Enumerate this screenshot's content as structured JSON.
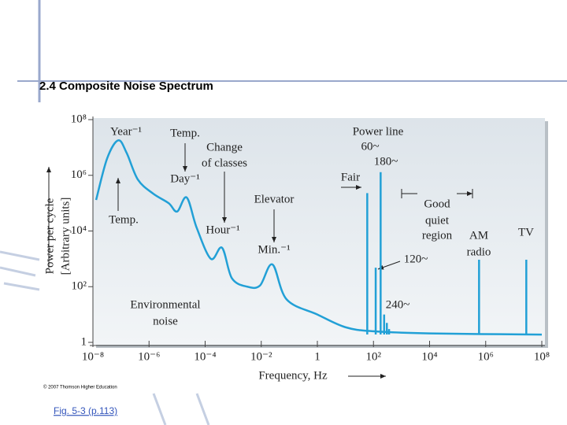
{
  "header": {
    "title": "2.4 Composite Noise Spectrum"
  },
  "chart_data": {
    "type": "line",
    "xscale": "log",
    "yscale": "log",
    "color": "#22a0d6",
    "xlabel": "Frequency, Hz",
    "ylabel": [
      "Power per cycle",
      "[Arbitrary units]"
    ],
    "x": [
      1.3e-08,
      3.2e-08,
      8e-08,
      1.6e-07,
      4e-07,
      1.4e-06,
      5e-06,
      1e-05,
      2.2e-05,
      5e-05,
      0.00016,
      0.0004,
      0.0009,
      0.0032,
      0.009,
      0.025,
      0.08,
      1,
      10,
      100,
      10000,
      100000000
    ],
    "values": [
      130000,
      4000000,
      18000000,
      6300000,
      700000,
      220000,
      100000,
      50000,
      160000,
      13000,
      1000,
      2500,
      200,
      100,
      110,
      630,
      35,
      10,
      3.5,
      2.5,
      2.1,
      1.9
    ],
    "spike_x": [
      60,
      120,
      180,
      240,
      300,
      360,
      580000,
      28000000
    ],
    "spike_values": [
      230000,
      480,
      1300000,
      10,
      5,
      3,
      930,
      930
    ],
    "xlim": [
      1e-08,
      100000000.0
    ],
    "ylim": [
      1,
      100000000.0
    ],
    "xticks": [
      {
        "value": 1e-08,
        "label": "10⁻⁸"
      },
      {
        "value": 1e-06,
        "label": "10⁻⁶"
      },
      {
        "value": 0.0001,
        "label": "10⁻⁴"
      },
      {
        "value": 0.01,
        "label": "10⁻²"
      },
      1,
      {
        "value": 100,
        "label": "10²"
      },
      {
        "value": 10000,
        "label": "10⁴"
      },
      {
        "value": 1000000,
        "label": "10⁶"
      },
      {
        "value": 100000000.0,
        "label": "10⁸"
      }
    ],
    "yticks": [
      1,
      {
        "value": 100,
        "label": "10²"
      },
      {
        "value": 10000,
        "label": "10⁴"
      },
      {
        "value": 1000000,
        "label": "10⁶"
      },
      {
        "value": 100000000.0,
        "label": "10⁸"
      }
    ],
    "annotations": [
      "Year⁻¹",
      "Temp.",
      "Change",
      "of classes",
      "Day⁻¹",
      "Temp.",
      "Hour⁻¹",
      "Elevator",
      "Min.⁻¹",
      "Environmental",
      "noise",
      "Power line",
      "60~",
      "180~",
      "Fair",
      "Good",
      "quiet",
      "region",
      "AM",
      "radio",
      "TV",
      "120~",
      "240~"
    ]
  },
  "copyright": "© 2007 Thomson Higher Education",
  "footer": "Fig. 5-3 (p.113)"
}
